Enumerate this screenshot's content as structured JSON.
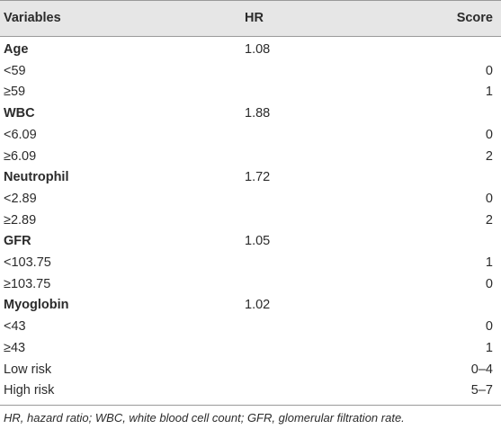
{
  "table": {
    "header": [
      "Variables",
      "HR",
      "Score"
    ],
    "rows": [
      [
        "Age",
        "1.08",
        null
      ],
      [
        "<59",
        null,
        "0"
      ],
      [
        "≥59",
        null,
        "1"
      ],
      [
        "WBC",
        "1.88",
        null
      ],
      [
        "<6.09",
        null,
        "0"
      ],
      [
        "≥6.09",
        null,
        "2"
      ],
      [
        "Neutrophil",
        "1.72",
        null
      ],
      [
        "<2.89",
        null,
        "0"
      ],
      [
        "≥2.89",
        null,
        "2"
      ],
      [
        "GFR",
        "1.05",
        null
      ],
      [
        "<103.75",
        null,
        "1"
      ],
      [
        "≥103.75",
        null,
        "0"
      ],
      [
        "Myoglobin",
        "1.02",
        null
      ],
      [
        "<43",
        null,
        "0"
      ],
      [
        "≥43",
        null,
        "1"
      ],
      [
        "Low risk",
        null,
        "0–4"
      ],
      [
        "High risk",
        null,
        "5–7"
      ]
    ],
    "footnote": "HR, hazard ratio; WBC, white blood cell count; GFR, glomerular filtration rate."
  }
}
